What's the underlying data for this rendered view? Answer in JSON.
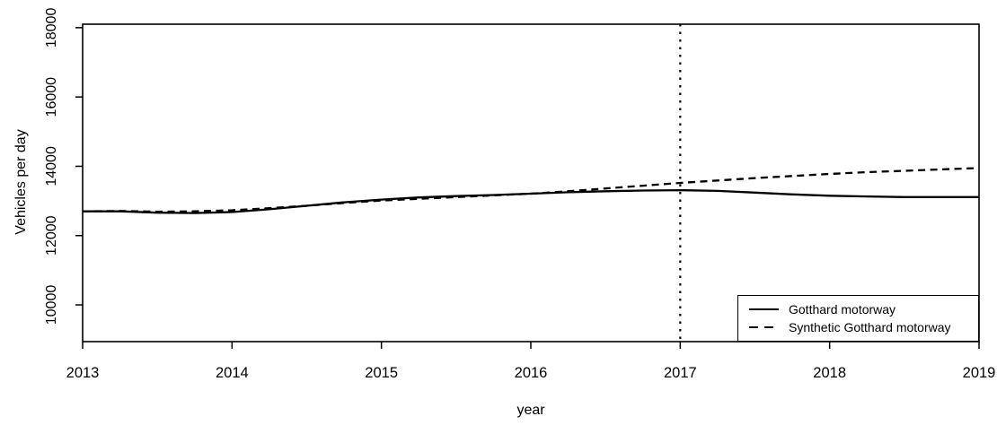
{
  "figure": {
    "background": "#ffffff",
    "axis_color": "#000000"
  },
  "chart_data": {
    "type": "line",
    "title": "",
    "xlabel": "year",
    "ylabel": "Vehicles per day",
    "xlim": [
      2013,
      2019
    ],
    "ylim": [
      8940,
      18100
    ],
    "x_ticks": [
      2013,
      2014,
      2015,
      2016,
      2017,
      2018,
      2019
    ],
    "y_ticks": [
      10000,
      12000,
      14000,
      16000,
      18000
    ],
    "grid": false,
    "frame_box": true,
    "vline": {
      "x": 2017,
      "line_style": "dotted",
      "color": "#000000"
    },
    "legend": {
      "position": "bottom-right",
      "entries": [
        {
          "label": "Gotthard motorway",
          "line_style": "solid"
        },
        {
          "label": "Synthetic Gotthard motorway",
          "line_style": "dashed"
        }
      ]
    },
    "x": [
      2013.0,
      2013.25,
      2013.5,
      2013.75,
      2014.0,
      2014.25,
      2014.5,
      2014.75,
      2015.0,
      2015.25,
      2015.5,
      2015.75,
      2016.0,
      2016.25,
      2016.5,
      2016.75,
      2017.0,
      2017.25,
      2017.5,
      2017.75,
      2018.0,
      2018.25,
      2018.5,
      2018.75,
      2019.0
    ],
    "series": [
      {
        "name": "Gotthard motorway",
        "line_style": "solid",
        "color": "#000000",
        "values": [
          12700,
          12700,
          12660,
          12650,
          12680,
          12760,
          12860,
          12960,
          13040,
          13100,
          13140,
          13170,
          13210,
          13250,
          13280,
          13300,
          13310,
          13290,
          13240,
          13190,
          13150,
          13130,
          13110,
          13110,
          13110
        ]
      },
      {
        "name": "Synthetic Gotthard motorway",
        "line_style": "dashed",
        "color": "#000000",
        "values": [
          12700,
          12710,
          12690,
          12700,
          12730,
          12790,
          12860,
          12940,
          13010,
          13060,
          13110,
          13160,
          13210,
          13280,
          13360,
          13440,
          13520,
          13590,
          13660,
          13720,
          13780,
          13830,
          13870,
          13910,
          13950
        ]
      }
    ]
  }
}
